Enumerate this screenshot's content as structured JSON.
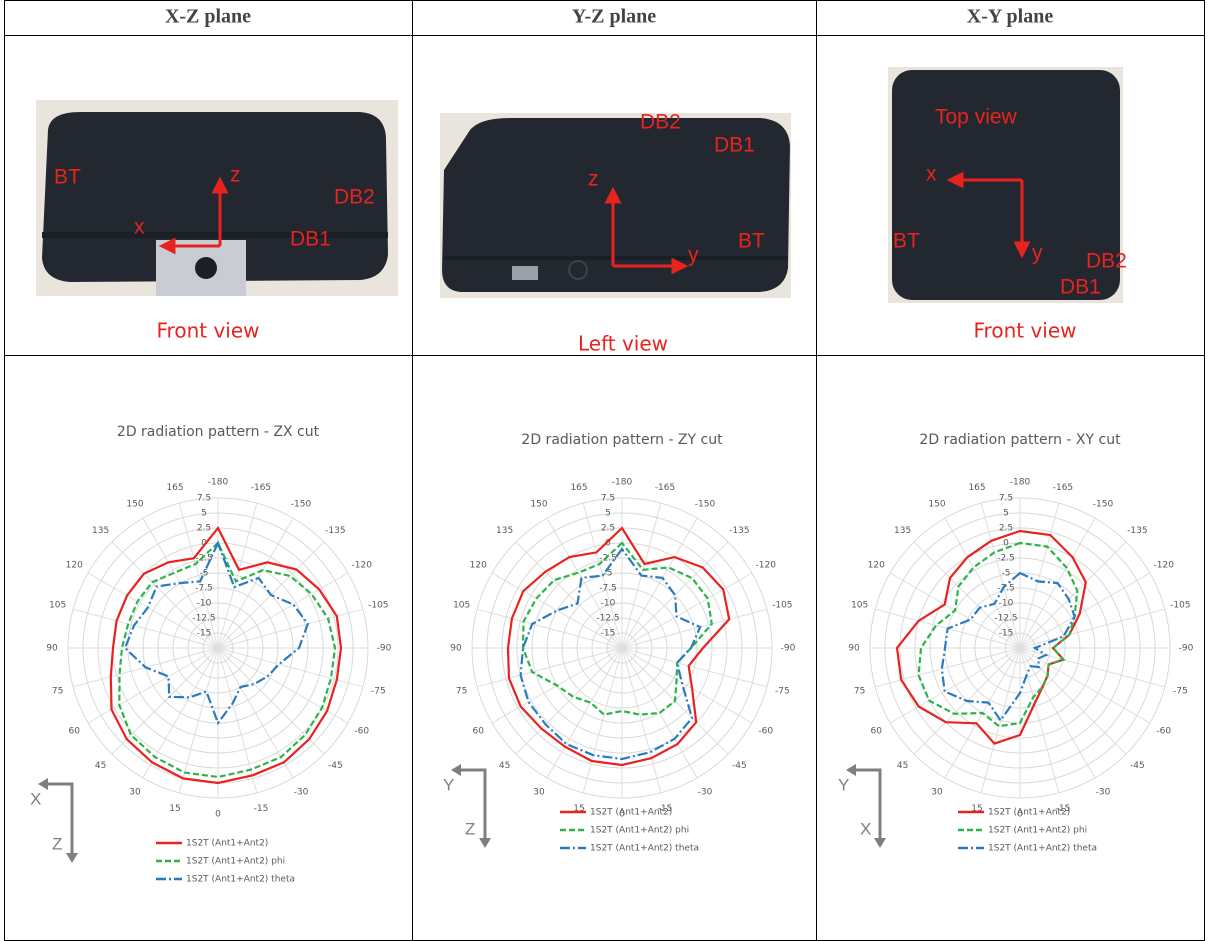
{
  "table": {
    "headers": [
      "X-Z plane",
      "Y-Z plane",
      "X-Y plane"
    ],
    "photos": [
      {
        "labels": [
          "BT",
          "z",
          "x",
          "DB2",
          "DB1"
        ],
        "caption": "Front view"
      },
      {
        "labels": [
          "DB2",
          "DB1",
          "z",
          "y",
          "BT"
        ],
        "caption": "Left view"
      },
      {
        "labels": [
          "Top view",
          "x",
          "BT",
          "y",
          "DB2",
          "DB1"
        ],
        "caption": "Front view"
      }
    ],
    "charts": [
      {
        "type": "polar",
        "title": "2D radiation pattern - ZX cut",
        "angles": [
          -180,
          165,
          150,
          135,
          120,
          105,
          90,
          75,
          60,
          45,
          30,
          15,
          0,
          -15,
          -30,
          -45,
          -60,
          -75,
          -90,
          -105,
          -120,
          -135,
          -150,
          -165
        ],
        "rlim": [
          -17.5,
          7.5
        ],
        "rticks": [
          7.5,
          5,
          2.5,
          0,
          -2.5,
          -5,
          -7.5,
          -10,
          -12.5,
          -15
        ],
        "axis_labels": [
          "X",
          "Z"
        ],
        "series": [
          {
            "name": "1S2T (Ant1+Ant2)",
            "color": "#e8231f",
            "values": [
              2.5,
              -2,
              -1,
              0,
              0,
              0,
              0,
              1,
              3,
              4,
              4.5,
              5,
              5,
              4.5,
              4.5,
              4,
              3.5,
              3,
              3,
              3,
              2,
              1,
              -1,
              -4
            ]
          },
          {
            "name": "1S2T (Ant1+Ant2) phi",
            "color": "#2db34a",
            "values": [
              0,
              -3,
              -3,
              -2,
              -2,
              -2,
              -1.5,
              -0.5,
              1.5,
              3,
              3.5,
              4,
              4,
              3.5,
              3.5,
              3,
              2.5,
              2,
              2,
              1.5,
              0.5,
              -0.5,
              -2.5,
              -6
            ]
          },
          {
            "name": "1S2T (Ant1+Ant2) theta",
            "color": "#2b7bbf",
            "values": [
              0,
              -6,
              -5,
              -3,
              -4,
              -3,
              -2,
              -5,
              -8,
              -6,
              -8,
              -10,
              -5,
              -8,
              -10,
              -9,
              -8,
              -7,
              -4,
              -2,
              -3,
              -5,
              -4,
              -7
            ]
          }
        ]
      },
      {
        "type": "polar",
        "title": "2D radiation pattern - ZY cut",
        "angles": [
          -180,
          165,
          150,
          135,
          120,
          105,
          90,
          75,
          60,
          45,
          30,
          15,
          0,
          -15,
          -30,
          -45,
          -60,
          -75,
          -90,
          -105,
          -120,
          -135,
          -150,
          -165
        ],
        "rlim": [
          -17.5,
          7.5
        ],
        "rticks": [
          7.5,
          5,
          2.5,
          0,
          -2.5,
          -5,
          -7.5,
          -10,
          -12.5,
          -15
        ],
        "axis_labels": [
          "Y",
          "Z"
        ],
        "series": [
          {
            "name": "1S2T (Ant1+Ant2)",
            "color": "#e8231f",
            "values": [
              2.5,
              -1,
              0,
              0.5,
              1.5,
              1.5,
              1.5,
              2,
              2,
              1.5,
              1.5,
              2,
              2,
              1.5,
              1,
              0,
              -4,
              -6,
              -4,
              1,
              2,
              1.5,
              0,
              -3
            ]
          },
          {
            "name": "1S2T (Ant1+Ant2) phi",
            "color": "#2db34a",
            "values": [
              0,
              -3,
              -3,
              -1.5,
              -1,
              -0.5,
              -1,
              -2,
              -5,
              -6,
              -7,
              -6,
              -7,
              -6,
              -5,
              -5,
              -7,
              -8,
              -6,
              -2,
              -1,
              -1,
              -2,
              -4
            ]
          },
          {
            "name": "1S2T (Ant1+Ant2) theta",
            "color": "#2b7bbf",
            "values": [
              -1,
              -5,
              -4,
              -7,
              -5,
              -2,
              -1,
              0,
              0.5,
              0.5,
              1,
              1,
              1,
              0.5,
              0,
              -1,
              -6,
              -8,
              -6,
              -4,
              -7,
              -5,
              -4,
              -5
            ]
          }
        ]
      },
      {
        "type": "polar",
        "title": "2D radiation pattern - XY cut",
        "angles": [
          -180,
          165,
          150,
          135,
          120,
          105,
          90,
          75,
          60,
          45,
          30,
          15,
          0,
          -15,
          -30,
          -45,
          -60,
          -75,
          -90,
          -105,
          -120,
          -135,
          -150,
          -165
        ],
        "rlim": [
          -17.5,
          7.5
        ],
        "rticks": [
          7.5,
          5,
          2.5,
          0,
          -2.5,
          -5,
          -7.5,
          -10,
          -12.5,
          -15
        ],
        "axis_labels": [
          "Y",
          "X"
        ],
        "series": [
          {
            "name": "1S2T (Ant1+Ant2)",
            "color": "#e8231f",
            "values": [
              2,
              1,
              0,
              -1,
              -3,
              0,
              3,
              3,
              2,
              0,
              -3,
              -1,
              -3,
              -8,
              -10,
              -11,
              -12,
              -10,
              -12,
              -9,
              -6,
              -2,
              0,
              2
            ]
          },
          {
            "name": "1S2T (Ant1+Ant2) phi",
            "color": "#2db34a",
            "values": [
              0,
              -1,
              -2,
              -3,
              -5,
              -3,
              -1,
              0,
              0,
              -2,
              -5,
              -4,
              -5,
              -9,
              -10,
              -11,
              -12,
              -10,
              -12,
              -9,
              -7,
              -4,
              -2,
              0
            ]
          },
          {
            "name": "1S2T (Ant1+Ant2) theta",
            "color": "#2b7bbf",
            "values": [
              -5,
              -7,
              -9,
              -8,
              -8,
              -5,
              -5,
              -4,
              -3,
              -5,
              -7,
              -5,
              -10,
              -13,
              -14,
              -13,
              -14,
              -13,
              -15,
              -10,
              -7,
              -6,
              -5,
              -6
            ]
          }
        ]
      }
    ]
  }
}
